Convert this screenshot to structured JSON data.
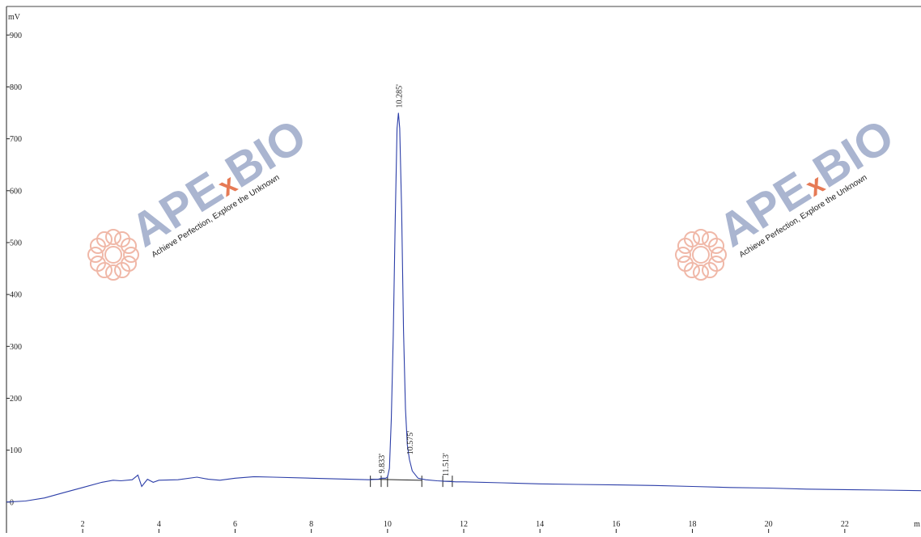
{
  "chart_data": {
    "type": "line",
    "xlabel": "m",
    "ylabel": "mV",
    "xlim": [
      0,
      24.0
    ],
    "ylim": [
      -5,
      955
    ],
    "x_ticks": [
      2,
      4,
      6,
      8,
      10,
      12,
      14,
      16,
      18,
      20,
      22
    ],
    "y_ticks": [
      0,
      100,
      200,
      300,
      400,
      500,
      600,
      700,
      800,
      900
    ],
    "grid": false,
    "series": [
      {
        "color": "#2c3ea8",
        "points": [
          [
            0.0,
            0
          ],
          [
            0.5,
            2
          ],
          [
            1.0,
            8
          ],
          [
            1.5,
            18
          ],
          [
            2.0,
            28
          ],
          [
            2.5,
            38
          ],
          [
            2.8,
            42
          ],
          [
            3.0,
            41
          ],
          [
            3.3,
            43
          ],
          [
            3.45,
            52
          ],
          [
            3.55,
            30
          ],
          [
            3.7,
            44
          ],
          [
            3.85,
            38
          ],
          [
            4.0,
            42
          ],
          [
            4.5,
            43
          ],
          [
            5.0,
            48
          ],
          [
            5.3,
            44
          ],
          [
            5.6,
            42
          ],
          [
            6.0,
            46
          ],
          [
            6.5,
            49
          ],
          [
            7.0,
            48
          ],
          [
            8.0,
            46
          ],
          [
            9.0,
            44
          ],
          [
            9.5,
            43
          ],
          [
            9.75,
            44
          ],
          [
            9.85,
            46
          ],
          [
            9.95,
            46
          ],
          [
            10.0,
            48
          ],
          [
            10.05,
            65
          ],
          [
            10.1,
            160
          ],
          [
            10.15,
            320
          ],
          [
            10.2,
            540
          ],
          [
            10.25,
            720
          ],
          [
            10.285,
            750
          ],
          [
            10.32,
            720
          ],
          [
            10.37,
            560
          ],
          [
            10.42,
            330
          ],
          [
            10.47,
            180
          ],
          [
            10.52,
            110
          ],
          [
            10.575,
            82
          ],
          [
            10.65,
            60
          ],
          [
            10.8,
            46
          ],
          [
            11.0,
            43
          ],
          [
            11.3,
            41
          ],
          [
            11.513,
            40
          ],
          [
            11.8,
            39
          ],
          [
            12.0,
            39
          ],
          [
            13.0,
            37
          ],
          [
            14.0,
            35
          ],
          [
            15.0,
            34
          ],
          [
            16.0,
            33
          ],
          [
            17.0,
            32
          ],
          [
            18.0,
            30
          ],
          [
            19.0,
            28
          ],
          [
            20.0,
            27
          ],
          [
            21.0,
            25
          ],
          [
            22.0,
            24
          ],
          [
            23.0,
            23
          ],
          [
            24.0,
            22
          ]
        ]
      }
    ],
    "peak_labels": [
      {
        "text": "10.285'",
        "x": 10.285,
        "y": 750
      },
      {
        "text": "10.575'",
        "x": 10.575,
        "y": 82
      },
      {
        "text": "11.513'",
        "x": 11.513,
        "y": 40
      },
      {
        "text": "9.833'",
        "x": 9.833,
        "y": 46
      }
    ],
    "integration_marks": [
      9.55,
      9.833,
      10.0,
      10.9,
      11.45,
      11.7
    ]
  },
  "watermarks": [
    {
      "brand": "APExBIO",
      "tagline": "Achieve Perfection, Explore the Unknown"
    },
    {
      "brand": "APExBIO",
      "tagline": "Achieve Perfection, Explore the Unknown"
    }
  ],
  "colors": {
    "trace": "#2c3ea8",
    "watermark_text": "#aab5d0",
    "watermark_logo": "#f0b8a8",
    "watermark_x": "#e67a55"
  }
}
